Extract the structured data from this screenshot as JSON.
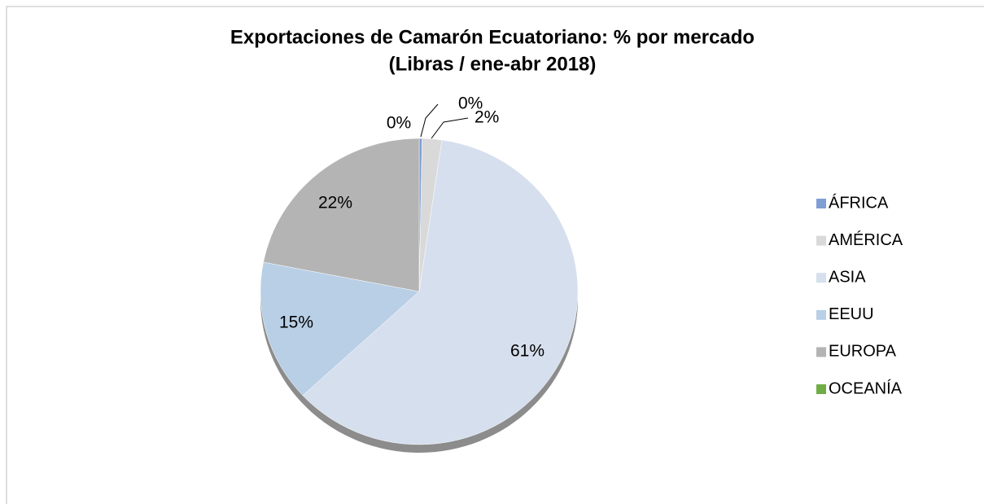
{
  "chart_data": {
    "type": "pie",
    "title": "Exportaciones de Camarón Ecuatoriano: % por mercado",
    "subtitle": "(Libras / ene-abr 2018)",
    "categories": [
      "ÁFRICA",
      "AMÉRICA",
      "ASIA",
      "EEUU",
      "EUROPA",
      "OCEANÍA"
    ],
    "values": [
      0.3,
      2,
      61,
      15,
      22,
      0
    ],
    "value_labels": [
      "0%",
      "2%",
      "61%",
      "15%",
      "22%",
      "0%"
    ],
    "colors": [
      "#7f9fd4",
      "#d9d9d9",
      "#d6dfee",
      "#b8cfe6",
      "#b4b4b4",
      "#70ad47"
    ],
    "legend": "right"
  }
}
